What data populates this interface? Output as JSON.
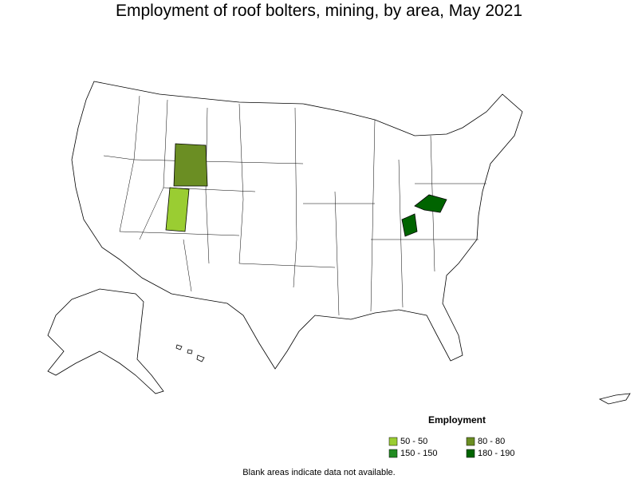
{
  "title": "Employment of roof bolters, mining, by area, May 2021",
  "legend": {
    "title": "Employment",
    "items": [
      {
        "label": "50 - 50",
        "color": "#9acd32"
      },
      {
        "label": "80 - 80",
        "color": "#6b8e23"
      },
      {
        "label": "150 - 150",
        "color": "#228b22"
      },
      {
        "label": "180 - 190",
        "color": "#006400"
      }
    ]
  },
  "note": "Blank areas indicate data not available."
}
